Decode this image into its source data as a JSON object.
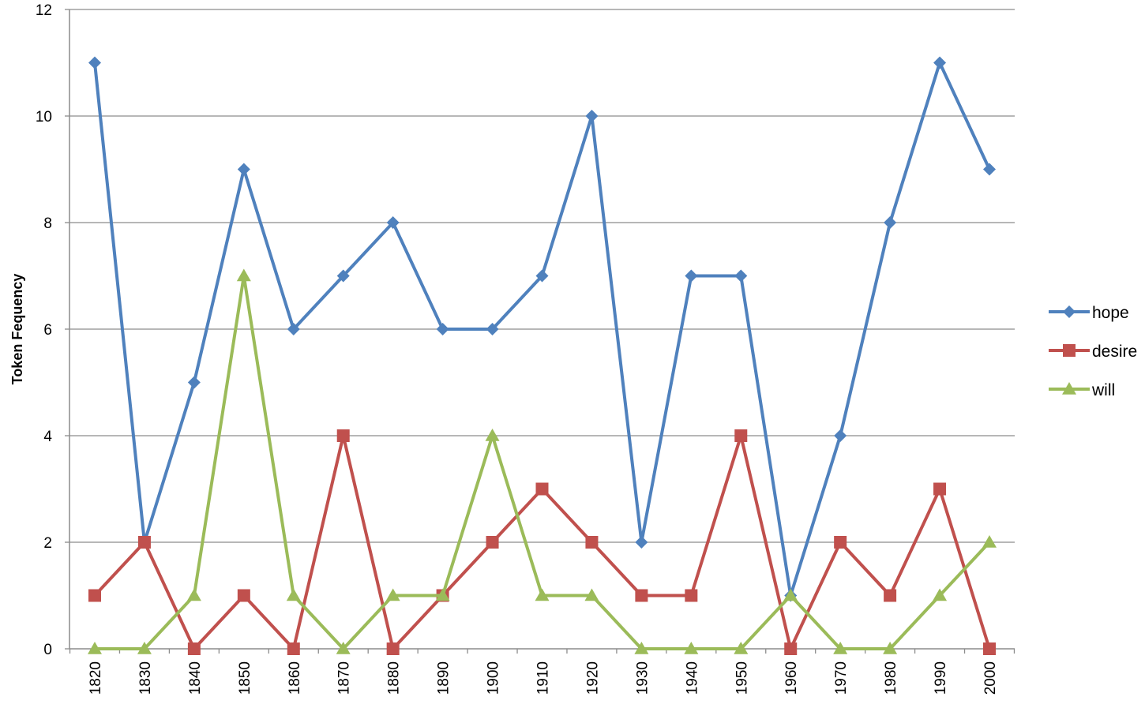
{
  "chart_data": {
    "type": "line",
    "title": "",
    "xlabel": "",
    "ylabel": "Token Fequency",
    "ylim": [
      0,
      12
    ],
    "yticks": [
      0,
      2,
      4,
      6,
      8,
      10,
      12
    ],
    "grid": "horizontal",
    "legend_position": "right",
    "categories": [
      "1820",
      "1830",
      "1840",
      "1850",
      "1860",
      "1870",
      "1880",
      "1890",
      "1900",
      "1910",
      "1920",
      "1930",
      "1940",
      "1950",
      "1960",
      "1970",
      "1980",
      "1990",
      "2000"
    ],
    "series": [
      {
        "name": "hope",
        "color": "#4f81bd",
        "marker": "diamond",
        "values": [
          11,
          2,
          5,
          9,
          6,
          7,
          8,
          6,
          6,
          7,
          10,
          2,
          7,
          7,
          1,
          4,
          8,
          11,
          9
        ]
      },
      {
        "name": "desire",
        "color": "#c0504d",
        "marker": "square",
        "values": [
          1,
          2,
          0,
          1,
          0,
          4,
          0,
          1,
          2,
          3,
          2,
          1,
          1,
          4,
          0,
          2,
          1,
          3,
          0
        ]
      },
      {
        "name": "will",
        "color": "#9bbb59",
        "marker": "triangle",
        "values": [
          0,
          0,
          1,
          7,
          1,
          0,
          1,
          1,
          4,
          1,
          1,
          0,
          0,
          0,
          1,
          0,
          0,
          1,
          2
        ]
      }
    ]
  }
}
